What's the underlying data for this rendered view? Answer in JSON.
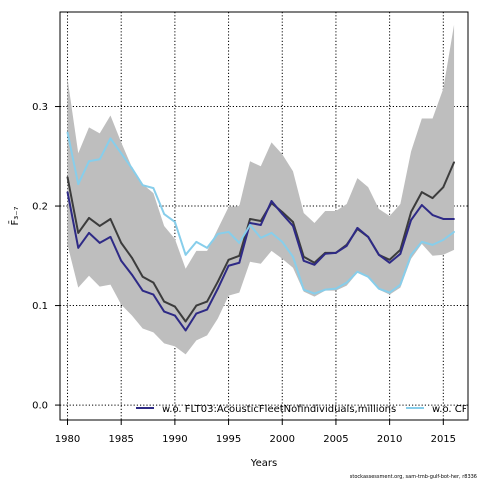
{
  "chart_data": {
    "type": "line",
    "xlabel": "Years",
    "ylabel": "F̄₃₋₇",
    "xlim": [
      1979.3,
      2017.3
    ],
    "ylim": [
      -0.015,
      0.395
    ],
    "xticks": [
      1980,
      1985,
      1990,
      1995,
      2000,
      2005,
      2010,
      2015
    ],
    "yticks": [
      0.0,
      0.1,
      0.2,
      0.3
    ],
    "ytick_labels": [
      "0.0",
      "0.1",
      "0.2",
      "0.3"
    ],
    "grid": true,
    "legend_position": "bottom",
    "x": [
      1980,
      1981,
      1982,
      1983,
      1984,
      1985,
      1986,
      1987,
      1988,
      1989,
      1990,
      1991,
      1992,
      1993,
      1994,
      1995,
      1996,
      1997,
      1998,
      1999,
      2000,
      2001,
      2002,
      2003,
      2004,
      2005,
      2006,
      2007,
      2008,
      2009,
      2010,
      2011,
      2012,
      2013,
      2014,
      2015,
      2016
    ],
    "band": {
      "upper": [
        0.328,
        0.253,
        0.279,
        0.273,
        0.291,
        0.264,
        0.239,
        0.222,
        0.213,
        0.18,
        0.167,
        0.137,
        0.155,
        0.155,
        0.177,
        0.199,
        0.2,
        0.245,
        0.24,
        0.264,
        0.252,
        0.235,
        0.193,
        0.183,
        0.195,
        0.195,
        0.202,
        0.228,
        0.219,
        0.197,
        0.19,
        0.202,
        0.255,
        0.288,
        0.288,
        0.318,
        0.382
      ],
      "lower": [
        0.161,
        0.118,
        0.13,
        0.119,
        0.121,
        0.101,
        0.09,
        0.077,
        0.073,
        0.062,
        0.059,
        0.051,
        0.065,
        0.07,
        0.087,
        0.11,
        0.113,
        0.144,
        0.142,
        0.155,
        0.147,
        0.138,
        0.114,
        0.109,
        0.115,
        0.115,
        0.12,
        0.133,
        0.128,
        0.116,
        0.111,
        0.118,
        0.147,
        0.162,
        0.15,
        0.151,
        0.156
      ],
      "color": "#bebebe"
    },
    "series": [
      {
        "values": [
          0.229,
          0.173,
          0.188,
          0.18,
          0.187,
          0.163,
          0.148,
          0.129,
          0.123,
          0.104,
          0.099,
          0.084,
          0.1,
          0.104,
          0.124,
          0.146,
          0.15,
          0.187,
          0.185,
          0.203,
          0.194,
          0.184,
          0.149,
          0.143,
          0.153,
          0.153,
          0.161,
          0.177,
          0.169,
          0.151,
          0.146,
          0.156,
          0.194,
          0.214,
          0.208,
          0.219,
          0.244
        ],
        "color": "#3c3c3c",
        "width": 2
      },
      {
        "name": "w.o. FLT03:AcousticFleetNofindividuals,millions",
        "values": [
          0.214,
          0.158,
          0.173,
          0.163,
          0.169,
          0.145,
          0.131,
          0.115,
          0.111,
          0.094,
          0.09,
          0.075,
          0.092,
          0.096,
          0.117,
          0.14,
          0.143,
          0.183,
          0.181,
          0.205,
          0.192,
          0.18,
          0.145,
          0.141,
          0.152,
          0.153,
          0.16,
          0.178,
          0.169,
          0.151,
          0.143,
          0.152,
          0.186,
          0.201,
          0.191,
          0.187,
          0.187
        ],
        "color": "#2e2a86",
        "width": 2
      },
      {
        "name": "w.o. CPUE",
        "values": [
          0.274,
          0.222,
          0.245,
          0.247,
          0.268,
          0.253,
          0.238,
          0.221,
          0.218,
          0.192,
          0.184,
          0.151,
          0.164,
          0.158,
          0.172,
          0.174,
          0.163,
          0.181,
          0.168,
          0.173,
          0.164,
          0.149,
          0.116,
          0.112,
          0.116,
          0.117,
          0.123,
          0.134,
          0.129,
          0.117,
          0.113,
          0.121,
          0.151,
          0.164,
          0.161,
          0.166,
          0.174
        ],
        "color": "#87ceeb",
        "width": 2
      }
    ]
  },
  "legend": {
    "item1": "w.o. FLT03:AcousticFleetNofindividuals,millions",
    "item2": "w.o. CPUE"
  },
  "footer": "stockassessment.org, sam-tmb-gulf-bot-her, r8336"
}
